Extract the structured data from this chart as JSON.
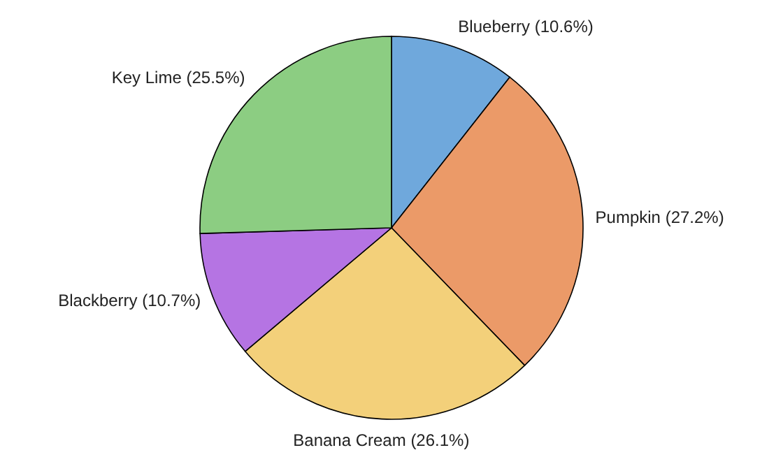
{
  "chart_data": {
    "type": "pie",
    "categories": [
      "Blueberry (10.6%)",
      "Pumpkin (27.2%)",
      "Banana Cream (26.1%)",
      "Blackberry (10.7%)",
      "Key Lime (25.5%)"
    ],
    "values": [
      10.6,
      27.2,
      26.1,
      10.7,
      25.5
    ],
    "colors": [
      "#6fa8dc",
      "#eb9a68",
      "#f3d07a",
      "#b574e3",
      "#8ccd82"
    ]
  }
}
